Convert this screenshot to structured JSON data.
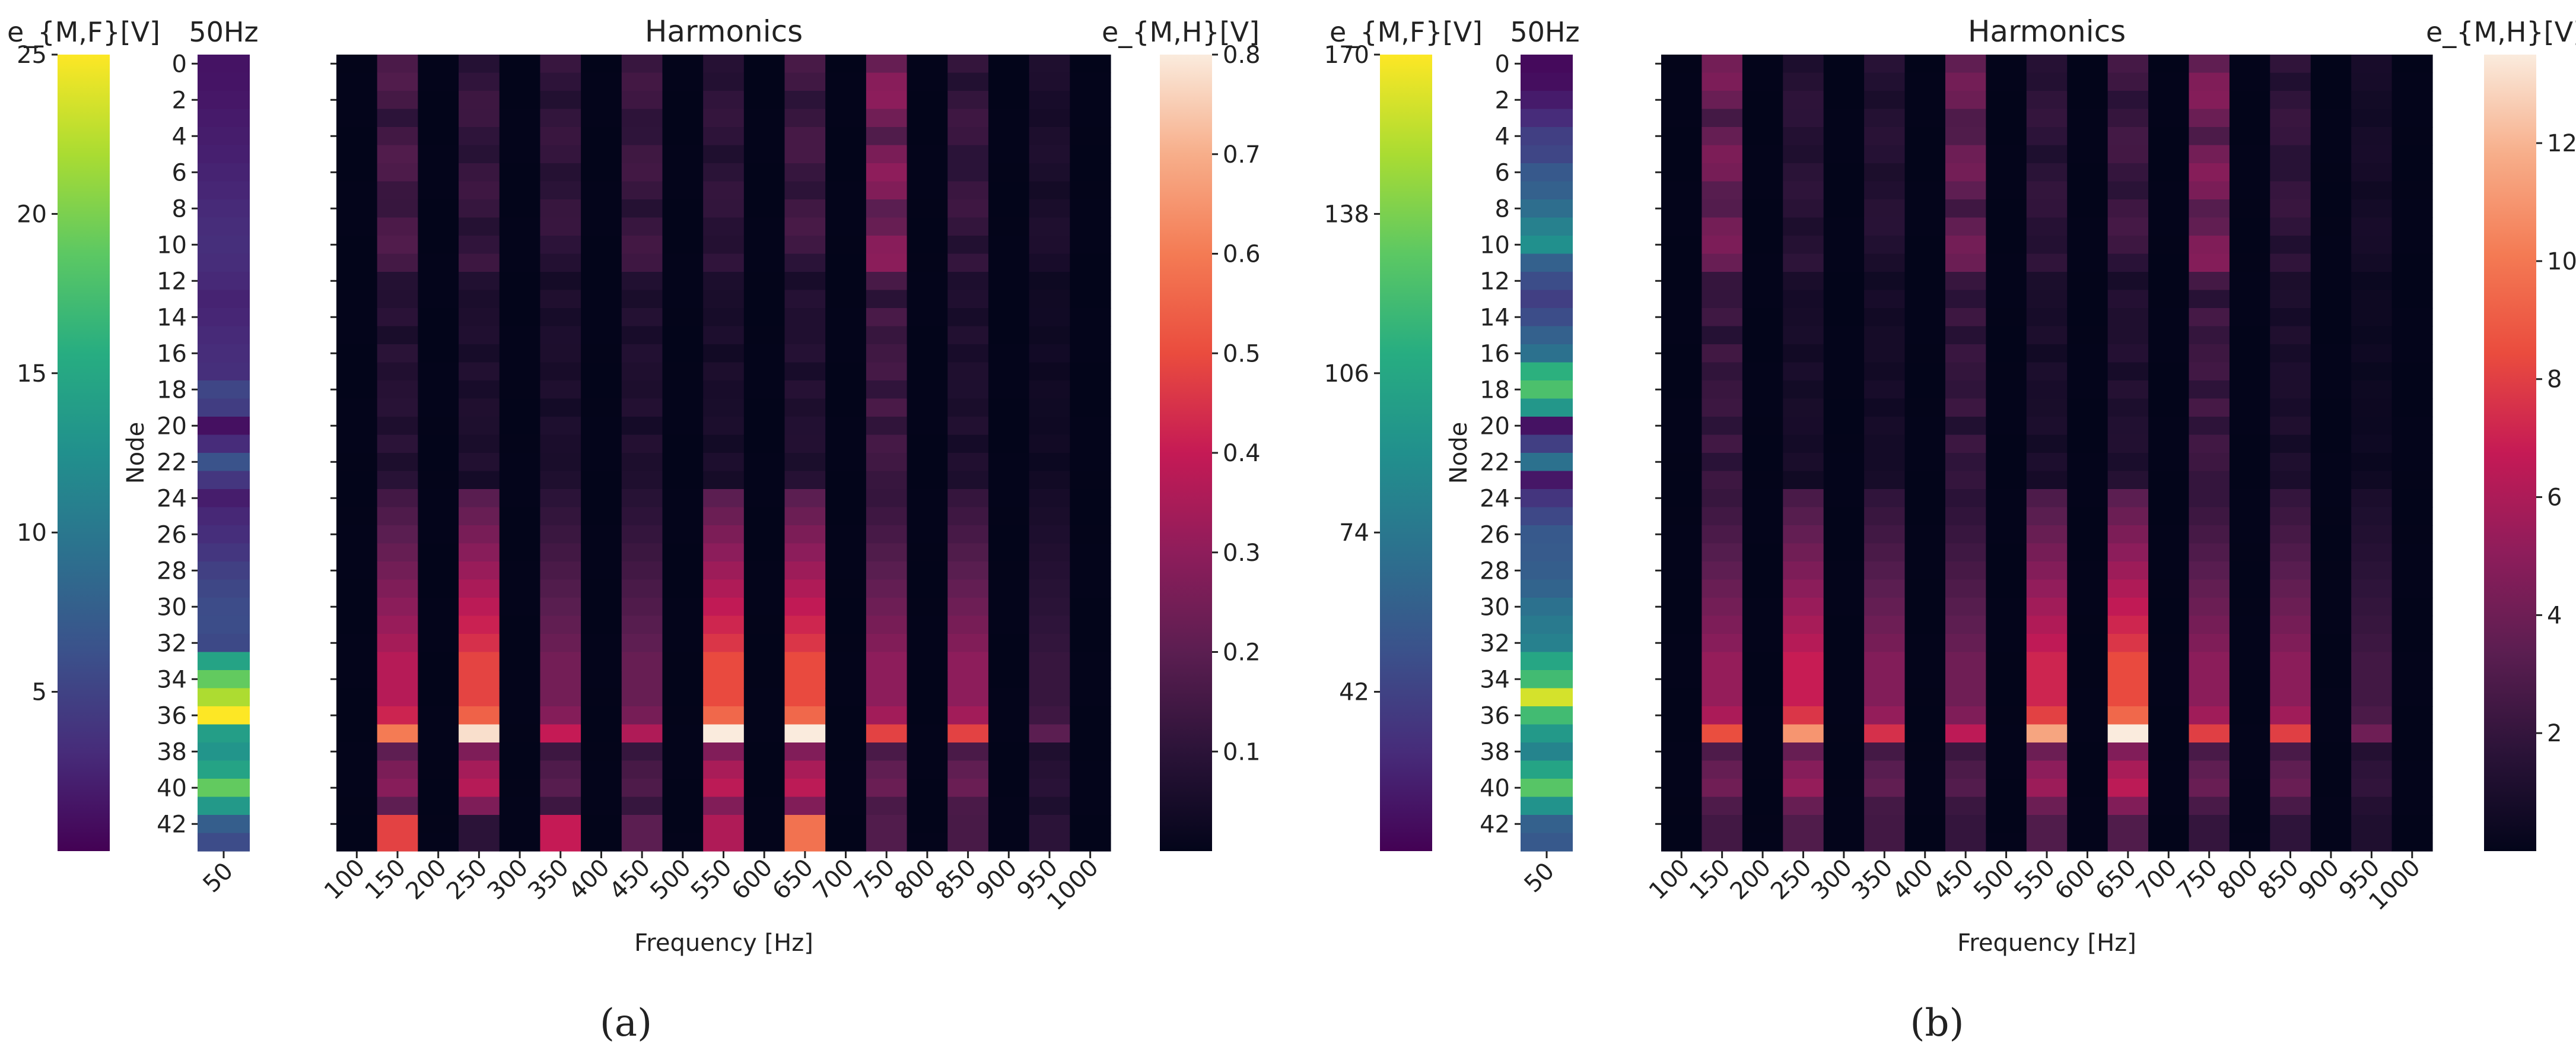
{
  "figure": {
    "panels": [
      {
        "caption": "(a)",
        "fundamental": {
          "title": "50Hz",
          "x_tick": "50",
          "ylabel": "Node",
          "values": [
            1.3,
            1.4,
            1.6,
            1.8,
            2.0,
            2.2,
            2.5,
            2.7,
            3.0,
            3.2,
            3.4,
            3.2,
            2.9,
            2.5,
            2.7,
            3.0,
            3.2,
            3.4,
            5.3,
            4.6,
            1.1,
            3.1,
            6.4,
            4.0,
            2.0,
            2.8,
            3.3,
            4.0,
            4.8,
            5.4,
            5.8,
            5.9,
            5.6,
            14.6,
            19.0,
            22.0,
            25.0,
            14.0,
            13.0,
            14.5,
            19.0,
            13.5,
            7.5,
            5.8
          ]
        },
        "fundamental_colorbar": {
          "label": "e_{M,F}[V]",
          "min": 0,
          "max": 25,
          "ticks": [
            5,
            10,
            15,
            20,
            25
          ],
          "tick_labels": [
            "5",
            "10",
            "15",
            "20",
            "25"
          ]
        },
        "harmonics": {
          "title": "Harmonics",
          "xlabel": "Frequency [Hz]",
          "x_ticks": [
            "100",
            "150",
            "200",
            "250",
            "300",
            "350",
            "400",
            "450",
            "500",
            "550",
            "600",
            "650",
            "700",
            "750",
            "800",
            "850",
            "900",
            "950",
            "1000"
          ],
          "node_labels": [
            "0",
            "2",
            "4",
            "6",
            "8",
            "10",
            "12",
            "14",
            "16",
            "18",
            "20",
            "22",
            "24",
            "26",
            "28",
            "30",
            "32",
            "34",
            "36",
            "38",
            "40",
            "42"
          ],
          "orders": [
            2,
            3,
            4,
            5,
            6,
            7,
            8,
            9,
            10,
            11,
            12,
            13,
            14,
            15,
            16,
            17,
            18,
            19,
            20
          ],
          "peaks": [
            0.0,
            0.6,
            0.0,
            0.78,
            0.0,
            0.4,
            0.0,
            0.36,
            0.0,
            0.8,
            0.0,
            0.8,
            0.0,
            0.48,
            0.0,
            0.48,
            0.0,
            0.2,
            0.0
          ],
          "top_peaks": [
            0.0,
            0.18,
            0.0,
            0.14,
            0.0,
            0.13,
            0.0,
            0.15,
            0.0,
            0.12,
            0.0,
            0.16,
            0.0,
            0.3,
            0.0,
            0.14,
            0.0,
            0.07,
            0.0
          ],
          "last_rows": [
            0.0,
            0.48,
            0.0,
            0.1,
            0.0,
            0.4,
            0.0,
            0.2,
            0.0,
            0.36,
            0.0,
            0.58,
            0.0,
            0.18,
            0.0,
            0.16,
            0.0,
            0.1,
            0.0
          ]
        },
        "harmonics_colorbar": {
          "label": "e_{M,H}[V]",
          "min": 0,
          "max": 0.8,
          "ticks": [
            0.1,
            0.2,
            0.3,
            0.4,
            0.5,
            0.6,
            0.7,
            0.8
          ],
          "tick_labels": [
            "0.1",
            "0.2",
            "0.3",
            "0.4",
            "0.5",
            "0.6",
            "0.7",
            "0.8"
          ]
        }
      },
      {
        "caption": "(b)",
        "fundamental": {
          "title": "50Hz",
          "x_tick": "50",
          "ylabel": "Node",
          "values": [
            14,
            16,
            22,
            30,
            40,
            44,
            55,
            60,
            68,
            80,
            90,
            60,
            48,
            40,
            48,
            60,
            70,
            112,
            124,
            95,
            18,
            40,
            70,
            20,
            35,
            45,
            55,
            56,
            58,
            62,
            70,
            76,
            80,
            105,
            120,
            160,
            120,
            96,
            82,
            104,
            128,
            92,
            60,
            55
          ]
        },
        "fundamental_colorbar": {
          "label": "e_{M,F}[V]",
          "min": 10,
          "max": 170,
          "ticks": [
            42,
            74,
            106,
            138,
            170
          ],
          "tick_labels": [
            "42",
            "74",
            "106",
            "138",
            "170"
          ]
        },
        "harmonics": {
          "title": "Harmonics",
          "xlabel": "Frequency [Hz]",
          "x_ticks": [
            "100",
            "150",
            "200",
            "250",
            "300",
            "350",
            "400",
            "450",
            "500",
            "550",
            "600",
            "650",
            "700",
            "750",
            "800",
            "850",
            "900",
            "950",
            "1000"
          ],
          "node_labels": [
            "0",
            "2",
            "4",
            "6",
            "8",
            "10",
            "12",
            "14",
            "16",
            "18",
            "20",
            "22",
            "24",
            "26",
            "28",
            "30",
            "32",
            "34",
            "36",
            "38",
            "40",
            "42"
          ],
          "orders": [
            2,
            3,
            4,
            5,
            6,
            7,
            8,
            9,
            10,
            11,
            12,
            13,
            14,
            15,
            16,
            17,
            18,
            19,
            20
          ],
          "peaks": [
            0.0,
            8.5,
            0.0,
            11.0,
            0.0,
            7.5,
            0.0,
            6.5,
            0.0,
            11.5,
            0.0,
            13.5,
            0.0,
            8.0,
            0.0,
            8.0,
            0.0,
            4.0,
            0.0
          ],
          "top_peaks": [
            0.0,
            4.5,
            0.0,
            1.8,
            0.0,
            1.6,
            0.0,
            4.2,
            0.0,
            2.0,
            0.0,
            2.6,
            0.0,
            4.8,
            0.0,
            2.2,
            0.0,
            0.9,
            0.0
          ],
          "last_rows": [
            0.0,
            2.5,
            0.0,
            3.0,
            0.0,
            2.5,
            0.0,
            2.0,
            0.0,
            3.0,
            0.0,
            3.0,
            0.0,
            2.0,
            0.0,
            1.8,
            0.0,
            1.2,
            0.0
          ]
        },
        "harmonics_colorbar": {
          "label": "e_{M,H}[V]",
          "min": 0,
          "max": 13.5,
          "ticks": [
            2,
            4,
            6,
            8,
            10,
            12
          ],
          "tick_labels": [
            "2",
            "4",
            "6",
            "8",
            "10",
            "12"
          ]
        }
      }
    ]
  },
  "chart_data": {
    "type": "heatmap",
    "panels": [
      {
        "caption": "(a)",
        "fundamental_title": "50Hz",
        "fundamental_colorbar_label": "e_{M,F}[V]",
        "fundamental_range": [
          0,
          25
        ],
        "harmonics_title": "Harmonics",
        "harmonics_colorbar_label": "e_{M,H}[V]",
        "harmonics_range": [
          0,
          0.8
        ],
        "xlabel": "Frequency [Hz]",
        "ylabel": "Node",
        "nodes": [
          0,
          43
        ]
      },
      {
        "caption": "(b)",
        "fundamental_title": "50Hz",
        "fundamental_colorbar_label": "e_{M,F}[V]",
        "fundamental_range": [
          10,
          170
        ],
        "harmonics_title": "Harmonics",
        "harmonics_colorbar_label": "e_{M,H}[V]",
        "harmonics_range": [
          0,
          13.5
        ],
        "xlabel": "Frequency [Hz]",
        "ylabel": "Node",
        "nodes": [
          0,
          43
        ]
      }
    ]
  }
}
